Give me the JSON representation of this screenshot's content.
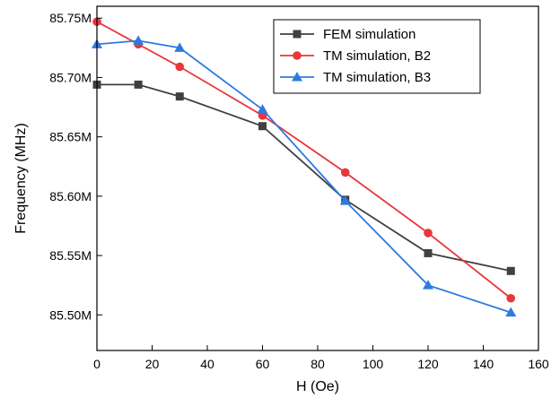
{
  "chart_data": {
    "type": "line",
    "xlabel": "H (Oe)",
    "ylabel": "Frequency (MHz)",
    "xlim": [
      0,
      160
    ],
    "ylim": [
      85.47,
      85.76
    ],
    "x_ticks": [
      0,
      20,
      40,
      60,
      80,
      100,
      120,
      140,
      160
    ],
    "x_tick_labels": [
      "0",
      "20",
      "40",
      "60",
      "80",
      "100",
      "120",
      "140",
      "160"
    ],
    "y_ticks": [
      85.5,
      85.55,
      85.6,
      85.65,
      85.7,
      85.75
    ],
    "y_tick_labels": [
      "85.50M",
      "85.55M",
      "85.60M",
      "85.65M",
      "85.70M",
      "85.75M"
    ],
    "legend_position": "top-right",
    "grid": false,
    "series": [
      {
        "name": "FEM simulation",
        "color": "#404040",
        "marker": "square",
        "x": [
          0,
          15,
          30,
          60,
          90,
          120,
          150
        ],
        "y": [
          85.694,
          85.694,
          85.684,
          85.659,
          85.597,
          85.552,
          85.537
        ]
      },
      {
        "name": "TM simulation, B2",
        "color": "#e8373a",
        "marker": "circle",
        "x": [
          0,
          15,
          30,
          60,
          90,
          120,
          150
        ],
        "y": [
          85.747,
          85.728,
          85.709,
          85.668,
          85.62,
          85.569,
          85.514
        ]
      },
      {
        "name": "TM simulation, B3",
        "color": "#2d7be0",
        "marker": "triangle",
        "x": [
          0,
          15,
          30,
          60,
          90,
          120,
          150
        ],
        "y": [
          85.728,
          85.731,
          85.725,
          85.673,
          85.596,
          85.525,
          85.502
        ]
      }
    ]
  }
}
